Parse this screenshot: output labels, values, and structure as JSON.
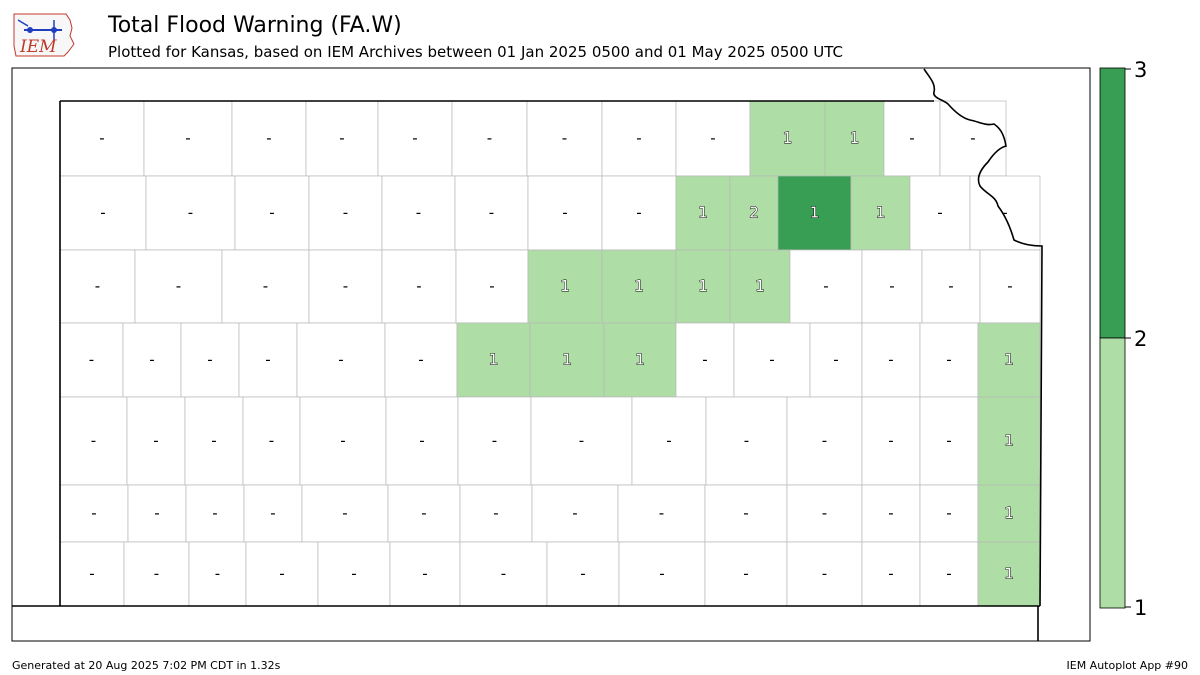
{
  "header": {
    "title": "Total Flood Warning (FA.W)",
    "subtitle": "Plotted for Kansas, based on IEM Archives  between 01 Jan 2025 0500 and 01 May 2025 0500 UTC"
  },
  "logo": {
    "text": "IEM",
    "icon": "iem-logo-icon"
  },
  "colorbar": {
    "labels": [
      "1",
      "2",
      "3"
    ],
    "colors": {
      "low": "#aedea5",
      "high": "#379e53"
    }
  },
  "legend_colors": {
    "none": "#ffffff",
    "one": "#aedea5",
    "two": "#379e53"
  },
  "county_values": {
    "zero_label": "-",
    "counts": [
      "1",
      "1",
      "1",
      "2",
      "1",
      "1",
      "1",
      "1",
      "1",
      "1",
      "1",
      "1",
      "1",
      "1",
      "1",
      "1",
      "1"
    ]
  },
  "footer": {
    "generated": "Generated at 20 Aug 2025 7:02 PM CDT in 1.32s",
    "app": "IEM Autoplot App #90"
  }
}
